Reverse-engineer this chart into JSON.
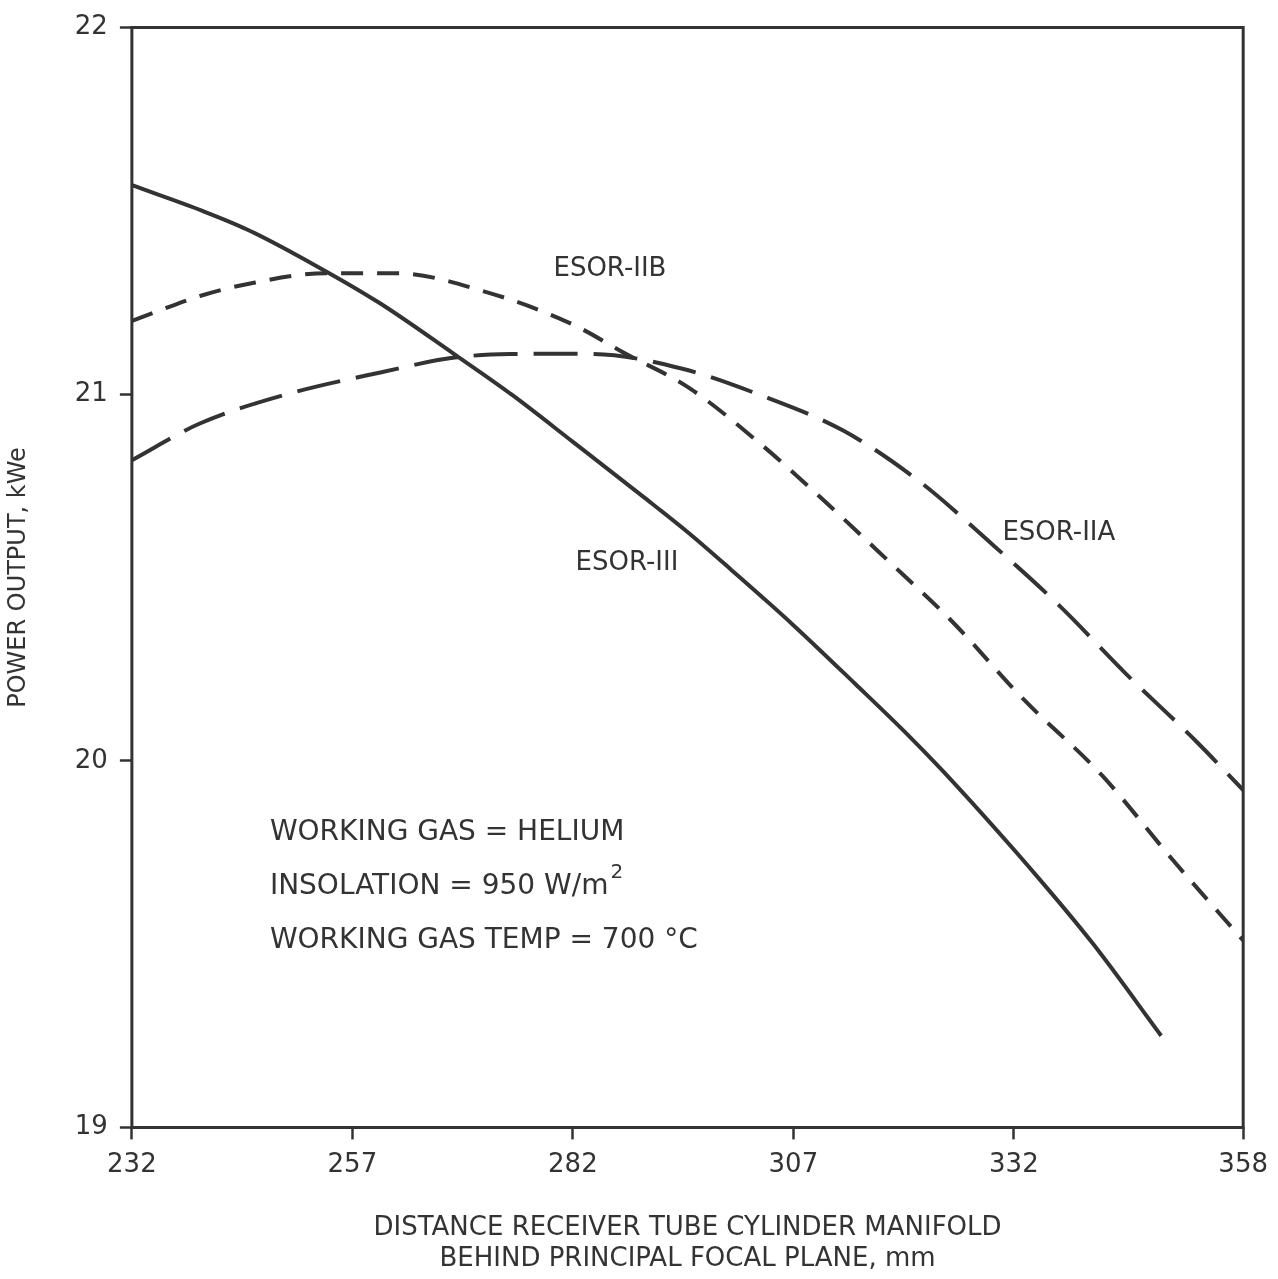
{
  "chart_data": {
    "type": "line",
    "xlabel": "DISTANCE RECEIVER TUBE CYLINDER MANIFOLD\nBEHIND PRINCIPAL FOCAL PLANE, mm",
    "ylabel": "POWER OUTPUT, kWe",
    "xlim": [
      232,
      358
    ],
    "xticks": [
      232,
      257,
      282,
      307,
      332,
      358
    ],
    "ylim": [
      19,
      22
    ],
    "yticks": [
      19,
      20,
      21,
      22
    ],
    "grid": false,
    "legend": false,
    "marker": "none",
    "series": [
      {
        "name": "ESOR-III",
        "color": "#333333",
        "line_style": "solid",
        "x": [
          232,
          240,
          245,
          252.9,
          260,
          268.5,
          275,
          282,
          290,
          295.2,
          300,
          307,
          314,
          320,
          325.2,
          334.8,
          341,
          348.7
        ],
        "values": [
          21.57,
          21.5,
          21.45,
          21.35,
          21.25,
          21.11,
          21.0,
          20.87,
          20.72,
          20.62,
          20.52,
          20.37,
          20.21,
          20.07,
          19.94,
          19.68,
          19.5,
          19.25
        ]
      },
      {
        "name": "ESOR-IIB",
        "color": "#333333",
        "line_style": "dashed",
        "x": [
          232,
          240,
          245,
          254,
          262,
          272,
          282,
          288,
          295,
          303,
          310,
          318,
          325,
          333,
          342,
          350,
          358
        ],
        "values": [
          21.2,
          21.27,
          21.3,
          21.33,
          21.33,
          21.28,
          21.19,
          21.11,
          21.02,
          20.87,
          20.72,
          20.54,
          20.38,
          20.17,
          19.96,
          19.73,
          19.51
        ]
      },
      {
        "name": "ESOR-IIA",
        "color": "#333333",
        "line_style": "dashed",
        "x": [
          232,
          239.7,
          249.6,
          260.3,
          268.6,
          276.8,
          284,
          294.3,
          303,
          312.7,
          321.4,
          329.1,
          337.3,
          344.6,
          352.8,
          358
        ],
        "values": [
          20.82,
          20.92,
          21.0,
          21.06,
          21.1,
          21.11,
          21.11,
          21.07,
          21.0,
          20.9,
          20.76,
          20.6,
          20.42,
          20.24,
          20.05,
          19.92
        ]
      }
    ],
    "annotations": [
      "WORKING GAS = HELIUM",
      "INSOLATION = 950 W/m$^{2}$",
      "WORKING GAS TEMP = 700 °C"
    ]
  }
}
